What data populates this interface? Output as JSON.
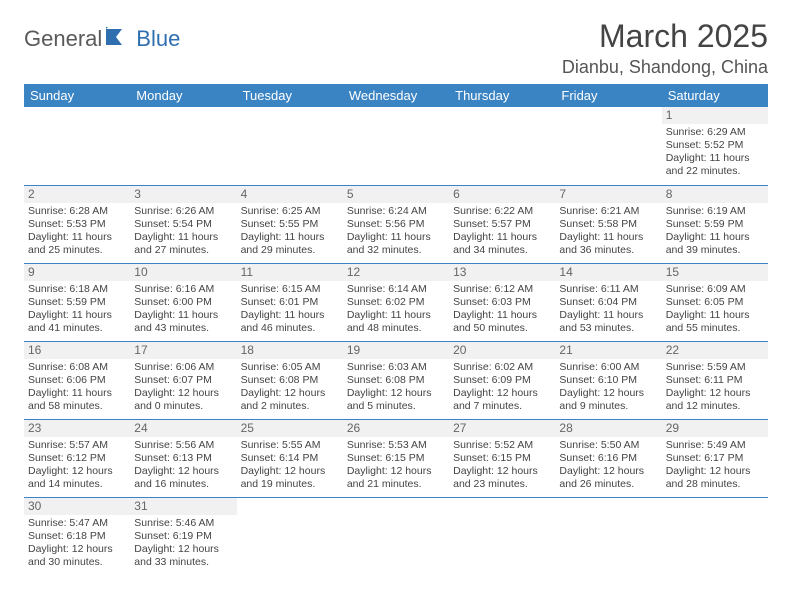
{
  "logo": {
    "part1": "General",
    "part2": "Blue"
  },
  "title": "March 2025",
  "location": "Dianbu, Shandong, China",
  "colors": {
    "header_bg": "#3b84c4",
    "header_text": "#ffffff",
    "border": "#3b84c4",
    "daynum_bg": "#f1f1f1",
    "logo_gray": "#5a5a5a",
    "logo_blue": "#2f6fb0"
  },
  "weekdays": [
    "Sunday",
    "Monday",
    "Tuesday",
    "Wednesday",
    "Thursday",
    "Friday",
    "Saturday"
  ],
  "weeks": [
    [
      {
        "day": null
      },
      {
        "day": null
      },
      {
        "day": null
      },
      {
        "day": null
      },
      {
        "day": null
      },
      {
        "day": null
      },
      {
        "day": 1,
        "sunrise": "Sunrise: 6:29 AM",
        "sunset": "Sunset: 5:52 PM",
        "daylight1": "Daylight: 11 hours",
        "daylight2": "and 22 minutes."
      }
    ],
    [
      {
        "day": 2,
        "sunrise": "Sunrise: 6:28 AM",
        "sunset": "Sunset: 5:53 PM",
        "daylight1": "Daylight: 11 hours",
        "daylight2": "and 25 minutes."
      },
      {
        "day": 3,
        "sunrise": "Sunrise: 6:26 AM",
        "sunset": "Sunset: 5:54 PM",
        "daylight1": "Daylight: 11 hours",
        "daylight2": "and 27 minutes."
      },
      {
        "day": 4,
        "sunrise": "Sunrise: 6:25 AM",
        "sunset": "Sunset: 5:55 PM",
        "daylight1": "Daylight: 11 hours",
        "daylight2": "and 29 minutes."
      },
      {
        "day": 5,
        "sunrise": "Sunrise: 6:24 AM",
        "sunset": "Sunset: 5:56 PM",
        "daylight1": "Daylight: 11 hours",
        "daylight2": "and 32 minutes."
      },
      {
        "day": 6,
        "sunrise": "Sunrise: 6:22 AM",
        "sunset": "Sunset: 5:57 PM",
        "daylight1": "Daylight: 11 hours",
        "daylight2": "and 34 minutes."
      },
      {
        "day": 7,
        "sunrise": "Sunrise: 6:21 AM",
        "sunset": "Sunset: 5:58 PM",
        "daylight1": "Daylight: 11 hours",
        "daylight2": "and 36 minutes."
      },
      {
        "day": 8,
        "sunrise": "Sunrise: 6:19 AM",
        "sunset": "Sunset: 5:59 PM",
        "daylight1": "Daylight: 11 hours",
        "daylight2": "and 39 minutes."
      }
    ],
    [
      {
        "day": 9,
        "sunrise": "Sunrise: 6:18 AM",
        "sunset": "Sunset: 5:59 PM",
        "daylight1": "Daylight: 11 hours",
        "daylight2": "and 41 minutes."
      },
      {
        "day": 10,
        "sunrise": "Sunrise: 6:16 AM",
        "sunset": "Sunset: 6:00 PM",
        "daylight1": "Daylight: 11 hours",
        "daylight2": "and 43 minutes."
      },
      {
        "day": 11,
        "sunrise": "Sunrise: 6:15 AM",
        "sunset": "Sunset: 6:01 PM",
        "daylight1": "Daylight: 11 hours",
        "daylight2": "and 46 minutes."
      },
      {
        "day": 12,
        "sunrise": "Sunrise: 6:14 AM",
        "sunset": "Sunset: 6:02 PM",
        "daylight1": "Daylight: 11 hours",
        "daylight2": "and 48 minutes."
      },
      {
        "day": 13,
        "sunrise": "Sunrise: 6:12 AM",
        "sunset": "Sunset: 6:03 PM",
        "daylight1": "Daylight: 11 hours",
        "daylight2": "and 50 minutes."
      },
      {
        "day": 14,
        "sunrise": "Sunrise: 6:11 AM",
        "sunset": "Sunset: 6:04 PM",
        "daylight1": "Daylight: 11 hours",
        "daylight2": "and 53 minutes."
      },
      {
        "day": 15,
        "sunrise": "Sunrise: 6:09 AM",
        "sunset": "Sunset: 6:05 PM",
        "daylight1": "Daylight: 11 hours",
        "daylight2": "and 55 minutes."
      }
    ],
    [
      {
        "day": 16,
        "sunrise": "Sunrise: 6:08 AM",
        "sunset": "Sunset: 6:06 PM",
        "daylight1": "Daylight: 11 hours",
        "daylight2": "and 58 minutes."
      },
      {
        "day": 17,
        "sunrise": "Sunrise: 6:06 AM",
        "sunset": "Sunset: 6:07 PM",
        "daylight1": "Daylight: 12 hours",
        "daylight2": "and 0 minutes."
      },
      {
        "day": 18,
        "sunrise": "Sunrise: 6:05 AM",
        "sunset": "Sunset: 6:08 PM",
        "daylight1": "Daylight: 12 hours",
        "daylight2": "and 2 minutes."
      },
      {
        "day": 19,
        "sunrise": "Sunrise: 6:03 AM",
        "sunset": "Sunset: 6:08 PM",
        "daylight1": "Daylight: 12 hours",
        "daylight2": "and 5 minutes."
      },
      {
        "day": 20,
        "sunrise": "Sunrise: 6:02 AM",
        "sunset": "Sunset: 6:09 PM",
        "daylight1": "Daylight: 12 hours",
        "daylight2": "and 7 minutes."
      },
      {
        "day": 21,
        "sunrise": "Sunrise: 6:00 AM",
        "sunset": "Sunset: 6:10 PM",
        "daylight1": "Daylight: 12 hours",
        "daylight2": "and 9 minutes."
      },
      {
        "day": 22,
        "sunrise": "Sunrise: 5:59 AM",
        "sunset": "Sunset: 6:11 PM",
        "daylight1": "Daylight: 12 hours",
        "daylight2": "and 12 minutes."
      }
    ],
    [
      {
        "day": 23,
        "sunrise": "Sunrise: 5:57 AM",
        "sunset": "Sunset: 6:12 PM",
        "daylight1": "Daylight: 12 hours",
        "daylight2": "and 14 minutes."
      },
      {
        "day": 24,
        "sunrise": "Sunrise: 5:56 AM",
        "sunset": "Sunset: 6:13 PM",
        "daylight1": "Daylight: 12 hours",
        "daylight2": "and 16 minutes."
      },
      {
        "day": 25,
        "sunrise": "Sunrise: 5:55 AM",
        "sunset": "Sunset: 6:14 PM",
        "daylight1": "Daylight: 12 hours",
        "daylight2": "and 19 minutes."
      },
      {
        "day": 26,
        "sunrise": "Sunrise: 5:53 AM",
        "sunset": "Sunset: 6:15 PM",
        "daylight1": "Daylight: 12 hours",
        "daylight2": "and 21 minutes."
      },
      {
        "day": 27,
        "sunrise": "Sunrise: 5:52 AM",
        "sunset": "Sunset: 6:15 PM",
        "daylight1": "Daylight: 12 hours",
        "daylight2": "and 23 minutes."
      },
      {
        "day": 28,
        "sunrise": "Sunrise: 5:50 AM",
        "sunset": "Sunset: 6:16 PM",
        "daylight1": "Daylight: 12 hours",
        "daylight2": "and 26 minutes."
      },
      {
        "day": 29,
        "sunrise": "Sunrise: 5:49 AM",
        "sunset": "Sunset: 6:17 PM",
        "daylight1": "Daylight: 12 hours",
        "daylight2": "and 28 minutes."
      }
    ],
    [
      {
        "day": 30,
        "sunrise": "Sunrise: 5:47 AM",
        "sunset": "Sunset: 6:18 PM",
        "daylight1": "Daylight: 12 hours",
        "daylight2": "and 30 minutes."
      },
      {
        "day": 31,
        "sunrise": "Sunrise: 5:46 AM",
        "sunset": "Sunset: 6:19 PM",
        "daylight1": "Daylight: 12 hours",
        "daylight2": "and 33 minutes."
      },
      {
        "day": null
      },
      {
        "day": null
      },
      {
        "day": null
      },
      {
        "day": null
      },
      {
        "day": null
      }
    ]
  ]
}
